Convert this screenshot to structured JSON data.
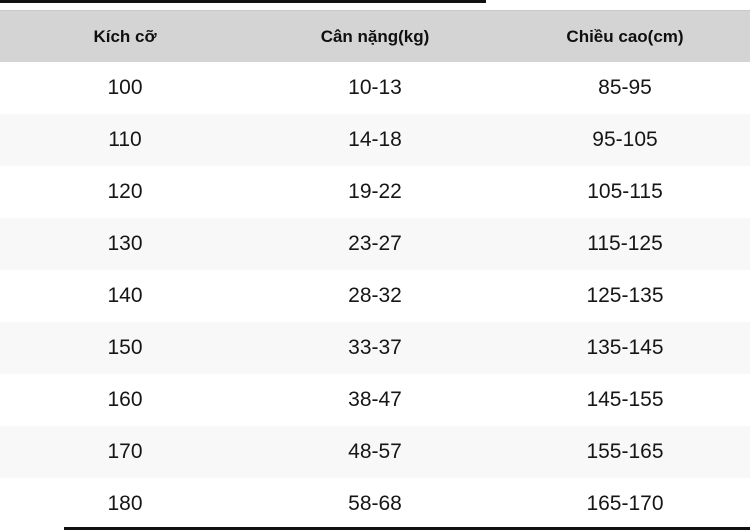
{
  "chart_data": {
    "type": "table",
    "columns": [
      "Kích cỡ",
      "Cân nặng(kg)",
      "Chiều cao(cm)"
    ],
    "rows": [
      [
        "100",
        "10-13",
        "85-95"
      ],
      [
        "110",
        "14-18",
        "95-105"
      ],
      [
        "120",
        "19-22",
        "105-115"
      ],
      [
        "130",
        "23-27",
        "115-125"
      ],
      [
        "140",
        "28-32",
        "125-135"
      ],
      [
        "150",
        "33-37",
        "135-145"
      ],
      [
        "160",
        "38-47",
        "145-155"
      ],
      [
        "170",
        "48-57",
        "155-165"
      ],
      [
        "180",
        "58-68",
        "165-170"
      ]
    ]
  },
  "colors": {
    "header_bg": "#d4d4d4",
    "stripe_bg": "#f8f8f8",
    "row_bg": "#ffffff",
    "text": "#161616",
    "edge_bar": "#111111"
  }
}
